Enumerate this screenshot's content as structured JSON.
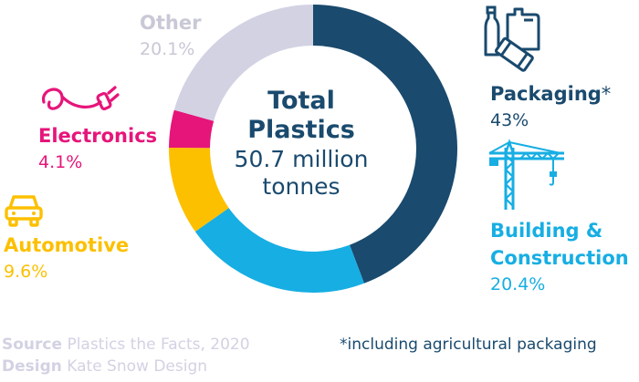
{
  "chart_data": {
    "type": "pie",
    "categories": [
      "Packaging*",
      "Building & Construction",
      "Automotive",
      "Electronics",
      "Other"
    ],
    "values": [
      43,
      20.4,
      9.6,
      4.1,
      20.1
    ],
    "value_labels": [
      "43%",
      "20.4%",
      "9.6%",
      "4.1%",
      "20.1%"
    ],
    "colors": [
      "#1a4a6e",
      "#17aee3",
      "#fcc000",
      "#e6157a",
      "#d2d2e3"
    ],
    "donut": true,
    "legend": "labels-around"
  },
  "center": {
    "title_line1": "Total",
    "title_line2": "Plastics",
    "amount_line1": "50.7 million",
    "amount_line2": "tonnes"
  },
  "labels": {
    "packaging": {
      "name": "Packaging",
      "star": "*",
      "pct": "43%",
      "color": "#1a4a6e",
      "icon": "bottles-icon"
    },
    "building": {
      "name_line1": "Building &",
      "name_line2": "Construction",
      "pct": "20.4%",
      "color": "#17aee3",
      "icon": "crane-icon"
    },
    "automotive": {
      "name": "Automotive",
      "pct": "9.6%",
      "color": "#fcc000",
      "icon": "car-icon"
    },
    "electronics": {
      "name": "Electronics",
      "pct": "4.1%",
      "color": "#e6157a",
      "icon": "plug-icon"
    },
    "other": {
      "name": "Other",
      "pct": "20.1%",
      "color": "#c8c8d6"
    }
  },
  "footer": {
    "source_key": "Source",
    "source_value": "Plastics the Facts, 2020",
    "design_key": "Design",
    "design_value": "Kate Snow Design",
    "footnote": "*including agricultural packaging",
    "key_color": "#d2d2e3",
    "value_color": "#d2d2e3"
  }
}
